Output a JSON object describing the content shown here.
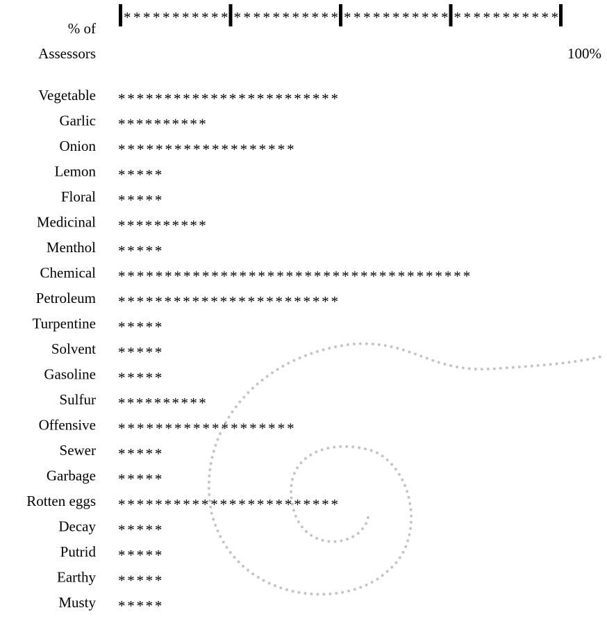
{
  "chart_data": {
    "type": "asterisk-bar",
    "axis_label": [
      "% of",
      "Assessors"
    ],
    "x_max_label": "100%",
    "xlim": [
      0,
      100
    ],
    "xticks": [
      0,
      25,
      50,
      75,
      100
    ],
    "categories": [
      "Vegetable",
      "Garlic",
      "Onion",
      "Lemon",
      "Floral",
      "Medicinal",
      "Menthol",
      "Chemical",
      "Petroleum",
      "Turpentine",
      "Solvent",
      "Gasoline",
      "Sulfur",
      "Offensive",
      "Sewer",
      "Garbage",
      "Rotten eggs",
      "Decay",
      "Putrid",
      "Earthy",
      "Musty"
    ],
    "values": [
      50,
      20,
      40,
      10,
      10,
      20,
      10,
      80,
      50,
      10,
      10,
      10,
      20,
      40,
      10,
      10,
      50,
      10,
      10,
      10,
      10
    ],
    "color": "#000000"
  }
}
